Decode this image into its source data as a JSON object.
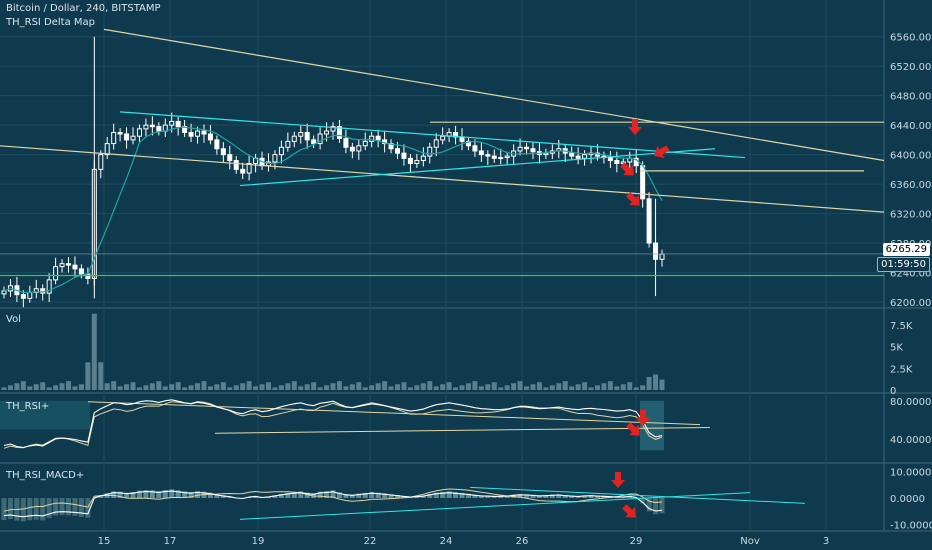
{
  "header": {
    "symbol_line": "Bitcoin / Dollar, 240, BITSTAMP",
    "indicator_line": "TH_RSI Delta Map"
  },
  "panes": {
    "volume_label": "Vol",
    "rsi_label": "TH_RSI+",
    "macd_label": "TH_RSI_MACD+"
  },
  "price_tag": {
    "price": "6265.29",
    "countdown": "01:59:50"
  },
  "colors": {
    "background": "#0f3a4e",
    "grid": "#1d4a5e",
    "candle": "#ffffff",
    "trendline_yellow": "#e0d6a6",
    "trendline_cyan": "#2ee6e6",
    "support_green": "#2ecc40",
    "arrow_red": "#e02424",
    "ma_teal": "#1fa3a3"
  },
  "chart_data": [
    {
      "type": "candlestick",
      "title": "Bitcoin / Dollar, 240, BITSTAMP",
      "ylim": [
        6200,
        6580
      ],
      "y_ticks": [
        "6560.00",
        "6520.00",
        "6480.00",
        "6440.00",
        "6400.00",
        "6360.00",
        "6320.00",
        "6280.00",
        "6240.00",
        "6200.00"
      ],
      "x_ticks": [
        "15",
        "17",
        "19",
        "22",
        "24",
        "26",
        "29",
        "Nov",
        "3"
      ],
      "last_price": 6265.29,
      "support_level": 6236,
      "resistance_level": 6444,
      "close_series": [
        6215,
        6222,
        6210,
        6205,
        6213,
        6218,
        6212,
        6230,
        6248,
        6252,
        6250,
        6245,
        6238,
        6232,
        6380,
        6400,
        6415,
        6430,
        6428,
        6420,
        6425,
        6435,
        6440,
        6438,
        6432,
        6440,
        6445,
        6438,
        6430,
        6425,
        6432,
        6428,
        6420,
        6408,
        6400,
        6392,
        6380,
        6375,
        6388,
        6395,
        6385,
        6390,
        6400,
        6410,
        6418,
        6425,
        6430,
        6420,
        6415,
        6428,
        6432,
        6438,
        6422,
        6410,
        6405,
        6412,
        6418,
        6425,
        6420,
        6415,
        6408,
        6402,
        6395,
        6388,
        6392,
        6398,
        6410,
        6420,
        6425,
        6430,
        6424,
        6418,
        6412,
        6405,
        6400,
        6398,
        6395,
        6396,
        6398,
        6405,
        6410,
        6408,
        6404,
        6400,
        6402,
        6405,
        6408,
        6402,
        6398,
        6395,
        6400,
        6402,
        6398,
        6396,
        6392,
        6388,
        6390,
        6395,
        6385,
        6340,
        6280,
        6258,
        6265
      ]
    },
    {
      "type": "bar",
      "title": "Vol",
      "y_ticks": [
        "7.5K",
        "5K",
        "2.5K",
        "0"
      ],
      "ylim": [
        0,
        9000
      ],
      "spike_value": 8800,
      "last_values": [
        1500,
        1800,
        1200
      ]
    },
    {
      "type": "line",
      "title": "TH_RSI+",
      "y_ticks": [
        "80.0000",
        "40.0000"
      ],
      "ylim": [
        20,
        85
      ]
    },
    {
      "type": "area",
      "title": "TH_RSI_MACD+",
      "y_ticks": [
        "10.0000",
        "0.0000",
        "-10.0000"
      ],
      "ylim": [
        -12,
        12
      ]
    }
  ]
}
